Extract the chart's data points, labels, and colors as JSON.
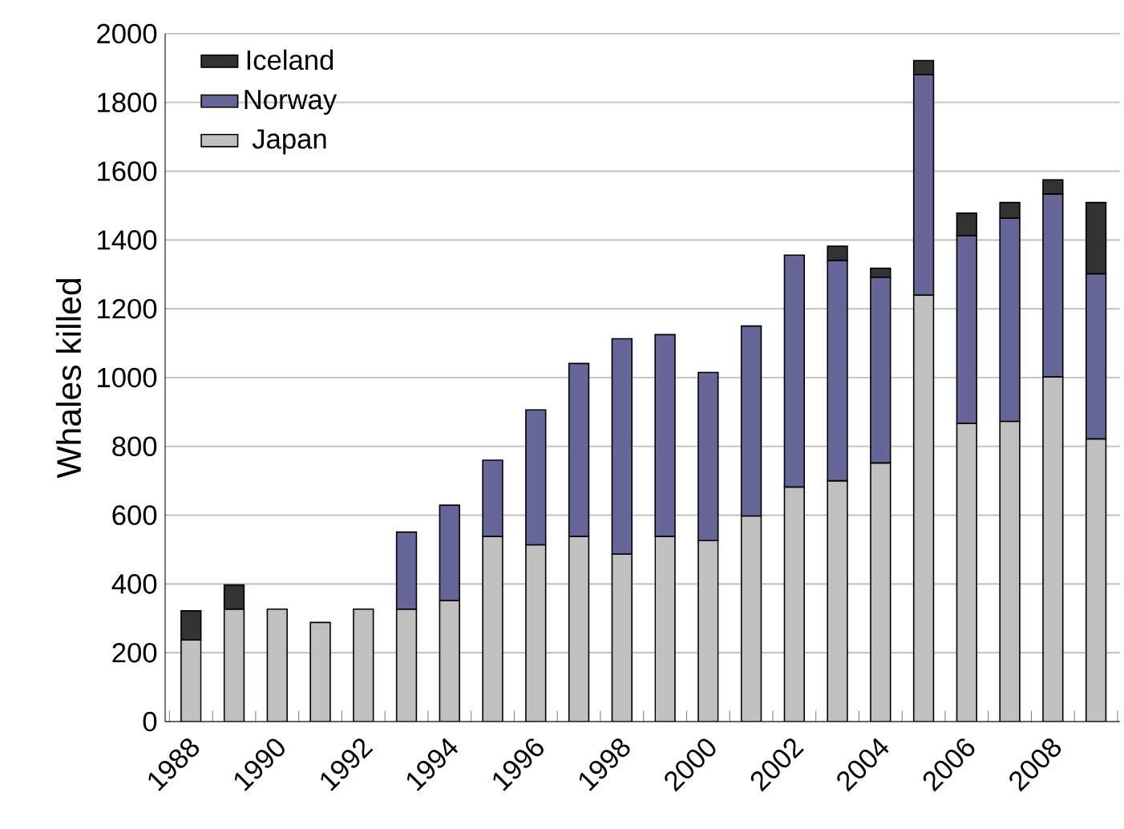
{
  "chart_data": {
    "type": "bar",
    "stacked": true,
    "ylabel": "Whales killed",
    "categories": [
      "1988",
      null,
      "1990",
      null,
      "1992",
      null,
      "1994",
      null,
      "1996",
      null,
      "1998",
      null,
      "2000",
      null,
      "2002",
      null,
      "2004",
      null,
      "2006",
      null,
      "2008",
      null
    ],
    "series": [
      {
        "name": "Japan",
        "color": "#c0c0c0",
        "values": [
          237,
          327,
          327,
          288,
          327,
          327,
          352,
          538,
          514,
          538,
          487,
          538,
          526,
          598,
          682,
          700,
          752,
          1240,
          867,
          873,
          1002,
          822
        ]
      },
      {
        "name": "Norway",
        "color": "#666699",
        "values": [
          null,
          null,
          null,
          null,
          null,
          224,
          277,
          222,
          392,
          503,
          626,
          587,
          489,
          552,
          674,
          641,
          540,
          641,
          546,
          591,
          532,
          480
        ]
      },
      {
        "name": "Iceland",
        "color": "#333333",
        "values": [
          85,
          70,
          null,
          null,
          null,
          null,
          null,
          null,
          null,
          null,
          null,
          null,
          null,
          null,
          null,
          41,
          26,
          41,
          65,
          45,
          41,
          207
        ]
      }
    ],
    "ylim": [
      0,
      2000
    ],
    "yticks": [
      0,
      200,
      400,
      600,
      800,
      1000,
      1200,
      1400,
      1600,
      1800,
      2000
    ],
    "grid": "y",
    "legend": "top left"
  }
}
